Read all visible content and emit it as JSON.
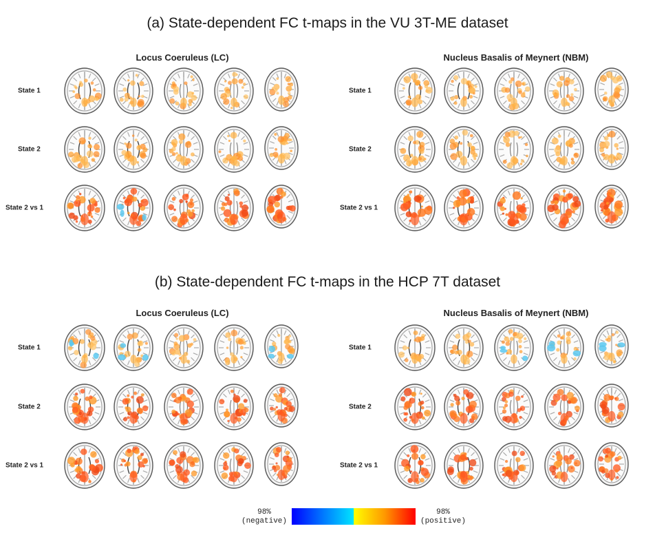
{
  "panels": [
    {
      "title": "(a) State-dependent FC t-maps in the VU 3T-ME dataset",
      "columns": [
        "Locus Coeruleus (LC)",
        "Nucleus Basalis of Meynert (NBM)"
      ],
      "rows": [
        "State 1",
        "State 2",
        "State 2 vs 1"
      ],
      "maps": [
        [
          [
            {
              "type": "orange",
              "level": 0.45
            },
            {
              "type": "orange",
              "level": 0.45
            },
            {
              "type": "orange",
              "level": 0.45
            },
            {
              "type": "orange",
              "level": 0.45
            },
            {
              "type": "orange",
              "level": 0.45
            }
          ],
          [
            {
              "type": "orange",
              "level": 0.5
            },
            {
              "type": "orange",
              "level": 0.5
            },
            {
              "type": "orange",
              "level": 0.5
            },
            {
              "type": "orange",
              "level": 0.5
            },
            {
              "type": "orange",
              "level": 0.5
            }
          ],
          [
            {
              "type": "red",
              "level": 0.75
            },
            {
              "type": "red",
              "level": 0.7,
              "negative": true
            },
            {
              "type": "red",
              "level": 0.7
            },
            {
              "type": "red",
              "level": 0.7
            },
            {
              "type": "red",
              "level": 0.75
            }
          ]
        ],
        [
          [
            {
              "type": "orange",
              "level": 0.5
            },
            {
              "type": "orange",
              "level": 0.45
            },
            {
              "type": "orange",
              "level": 0.45
            },
            {
              "type": "orange",
              "level": 0.45
            },
            {
              "type": "orange",
              "level": 0.45
            }
          ],
          [
            {
              "type": "orange",
              "level": 0.5
            },
            {
              "type": "orange",
              "level": 0.5
            },
            {
              "type": "orange",
              "level": 0.5
            },
            {
              "type": "orange",
              "level": 0.5
            },
            {
              "type": "orange",
              "level": 0.5
            }
          ],
          [
            {
              "type": "red",
              "level": 0.8
            },
            {
              "type": "red",
              "level": 0.8
            },
            {
              "type": "red",
              "level": 0.8
            },
            {
              "type": "red",
              "level": 0.8
            },
            {
              "type": "red",
              "level": 0.8
            }
          ]
        ]
      ]
    },
    {
      "title": "(b) State-dependent FC t-maps in the HCP 7T dataset",
      "columns": [
        "Locus Coeruleus (LC)",
        "Nucleus Basalis of Meynert (NBM)"
      ],
      "rows": [
        "State 1",
        "State 2",
        "State 2 vs 1"
      ],
      "maps": [
        [
          [
            {
              "type": "mixed",
              "level": 0.45,
              "negative": true
            },
            {
              "type": "mixed",
              "level": 0.4,
              "negative": true
            },
            {
              "type": "orange",
              "level": 0.45
            },
            {
              "type": "orange",
              "level": 0.4
            },
            {
              "type": "mixed",
              "level": 0.4,
              "negative": true
            }
          ],
          [
            {
              "type": "red",
              "level": 0.7
            },
            {
              "type": "red",
              "level": 0.65
            },
            {
              "type": "red",
              "level": 0.65
            },
            {
              "type": "red",
              "level": 0.65
            },
            {
              "type": "red",
              "level": 0.6
            }
          ],
          [
            {
              "type": "red",
              "level": 0.7
            },
            {
              "type": "red",
              "level": 0.65
            },
            {
              "type": "red",
              "level": 0.6
            },
            {
              "type": "red",
              "level": 0.65
            },
            {
              "type": "red",
              "level": 0.6
            }
          ]
        ],
        [
          [
            {
              "type": "orange",
              "level": 0.45
            },
            {
              "type": "orange",
              "level": 0.45
            },
            {
              "type": "mixed",
              "level": 0.45,
              "negative": true
            },
            {
              "type": "mixed",
              "level": 0.45,
              "negative": true
            },
            {
              "type": "mixed",
              "level": 0.4,
              "negative": true
            }
          ],
          [
            {
              "type": "red",
              "level": 0.7
            },
            {
              "type": "red",
              "level": 0.65
            },
            {
              "type": "red",
              "level": 0.6
            },
            {
              "type": "red",
              "level": 0.6
            },
            {
              "type": "red",
              "level": 0.6
            }
          ],
          [
            {
              "type": "red",
              "level": 0.7
            },
            {
              "type": "red",
              "level": 0.65
            },
            {
              "type": "red",
              "level": 0.6
            },
            {
              "type": "red",
              "level": 0.6
            },
            {
              "type": "red",
              "level": 0.6
            }
          ]
        ]
      ]
    }
  ],
  "colorbar": {
    "negative_label": "98%\n(negative)",
    "positive_label": "98%\n(positive)",
    "colors": [
      "#0000ff",
      "#00e5ff",
      "#ffff00",
      "#ff0000"
    ]
  }
}
